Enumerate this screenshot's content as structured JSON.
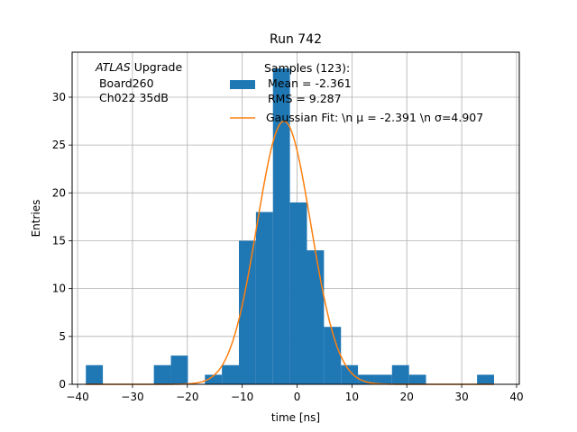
{
  "chart_data": {
    "type": "bar",
    "title": "Run 742",
    "xlabel": "time [ns]",
    "ylabel": "Entries",
    "xlim": [
      -41,
      40.5
    ],
    "ylim": [
      0,
      34.7
    ],
    "grid": true,
    "xticks": [
      -40,
      -30,
      -20,
      -10,
      0,
      10,
      20,
      30,
      40
    ],
    "xtick_labels": [
      "−40",
      "−30",
      "−20",
      "−10",
      "0",
      "10",
      "20",
      "30",
      "40"
    ],
    "yticks": [
      0,
      5,
      10,
      15,
      20,
      25,
      30
    ],
    "ytick_labels": [
      "0",
      "5",
      "10",
      "15",
      "20",
      "25",
      "30"
    ],
    "annotation": {
      "line1_italic": "ATLAS",
      "line1_rest": " Upgrade",
      "line2": " Board260",
      "line3": " Ch022 35dB"
    },
    "histogram": {
      "name_lines": [
        "Samples (123):",
        " Mean = -2.361",
        " RMS = 9.287"
      ],
      "color": "#1f77b4",
      "bin_edges": [
        -38.5,
        -35.4,
        -32.3,
        -29.2,
        -26.1,
        -23.0,
        -19.9,
        -16.8,
        -13.7,
        -10.6,
        -7.5,
        -4.4,
        -1.3,
        1.8,
        4.9,
        8.0,
        11.1,
        14.2,
        17.3,
        20.4,
        23.5,
        26.6,
        29.7,
        32.8,
        35.9
      ],
      "counts": [
        2,
        0,
        0,
        0,
        2,
        3,
        0,
        1,
        2,
        15,
        18,
        33,
        19,
        14,
        6,
        2,
        1,
        1,
        2,
        1,
        0,
        0,
        0,
        1
      ]
    },
    "fit": {
      "name": "Gaussian Fit: \\n μ = -2.391 \\n σ=4.907",
      "color": "#ff7f0e",
      "mu": -2.391,
      "sigma": 4.907,
      "amplitude": 27.5,
      "x_range": [
        -38.5,
        35.9
      ]
    },
    "legend_position": "upper-right"
  }
}
